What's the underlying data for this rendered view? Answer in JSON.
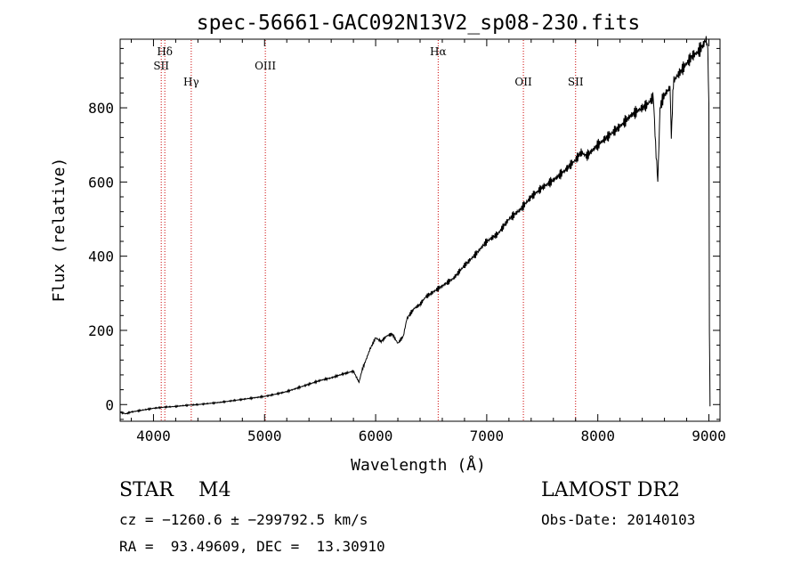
{
  "chart_data": {
    "type": "line",
    "title": "spec-56661-GAC092N13V2_sp08-230.fits",
    "xlabel": "Wavelength (Å)",
    "ylabel": "Flux (relative)",
    "xlim": [
      3700,
      9100
    ],
    "ylim": [
      -45,
      985
    ],
    "xticks": [
      4000,
      5000,
      6000,
      7000,
      8000,
      9000
    ],
    "yticks": [
      0,
      200,
      400,
      600,
      800
    ],
    "grid": false,
    "line_color": "#000000",
    "marker_color": "#cc0000",
    "series": [
      {
        "x": [
          3700,
          3750,
          3800,
          3900,
          4000,
          4100,
          4200,
          4300,
          4400,
          4500,
          4600,
          4700,
          4800,
          4900,
          5000,
          5100,
          5200,
          5300,
          5400,
          5500,
          5600,
          5700,
          5800,
          5850,
          5880,
          5900,
          5950,
          6000,
          6050,
          6100,
          6150,
          6200,
          6250,
          6280,
          6300,
          6350,
          6400,
          6450,
          6500,
          6550,
          6600,
          6650,
          6700,
          6800,
          6900,
          7000,
          7100,
          7200,
          7300,
          7400,
          7500,
          7600,
          7700,
          7800,
          7850,
          7900,
          8000,
          8100,
          8200,
          8300,
          8400,
          8450,
          8500,
          8520,
          8540,
          8560,
          8580,
          8600,
          8650,
          8662,
          8680,
          8700,
          8750,
          8800,
          8850,
          8900,
          8950,
          8975,
          8990,
          9000,
          9005,
          9010
        ],
        "y": [
          -20,
          -25,
          -20,
          -15,
          -10,
          -7,
          -5,
          -2,
          0,
          3,
          6,
          10,
          14,
          18,
          22,
          28,
          35,
          45,
          55,
          65,
          72,
          82,
          90,
          60,
          95,
          110,
          150,
          180,
          170,
          185,
          190,
          165,
          185,
          230,
          240,
          260,
          270,
          290,
          300,
          310,
          320,
          330,
          340,
          375,
          405,
          440,
          460,
          500,
          525,
          560,
          585,
          605,
          630,
          660,
          680,
          670,
          700,
          725,
          750,
          780,
          800,
          810,
          830,
          700,
          600,
          800,
          820,
          835,
          855,
          720,
          870,
          880,
          900,
          920,
          940,
          950,
          970,
          985,
          960,
          800,
          200,
          -5
        ]
      }
    ],
    "markers": [
      {
        "label": "Hδ",
        "x": 4102,
        "row": 1
      },
      {
        "label": "SII",
        "x": 4070,
        "row": 2
      },
      {
        "label": "Hγ",
        "x": 4340,
        "row": 3
      },
      {
        "label": "OIII",
        "x": 5007,
        "row": 2
      },
      {
        "label": "Hα",
        "x": 6563,
        "row": 1
      },
      {
        "label": "OII",
        "x": 7330,
        "row": 3
      },
      {
        "label": "SII",
        "x": 7800,
        "row": 3
      }
    ]
  },
  "info": {
    "class_line": "STAR    M4",
    "velocity": "cz = −1260.6 ± −299792.5 km/s",
    "coords": "RA =  93.49609, DEC =  13.30910",
    "survey": "LAMOST DR2",
    "obs_date": "Obs-Date: 20140103"
  }
}
